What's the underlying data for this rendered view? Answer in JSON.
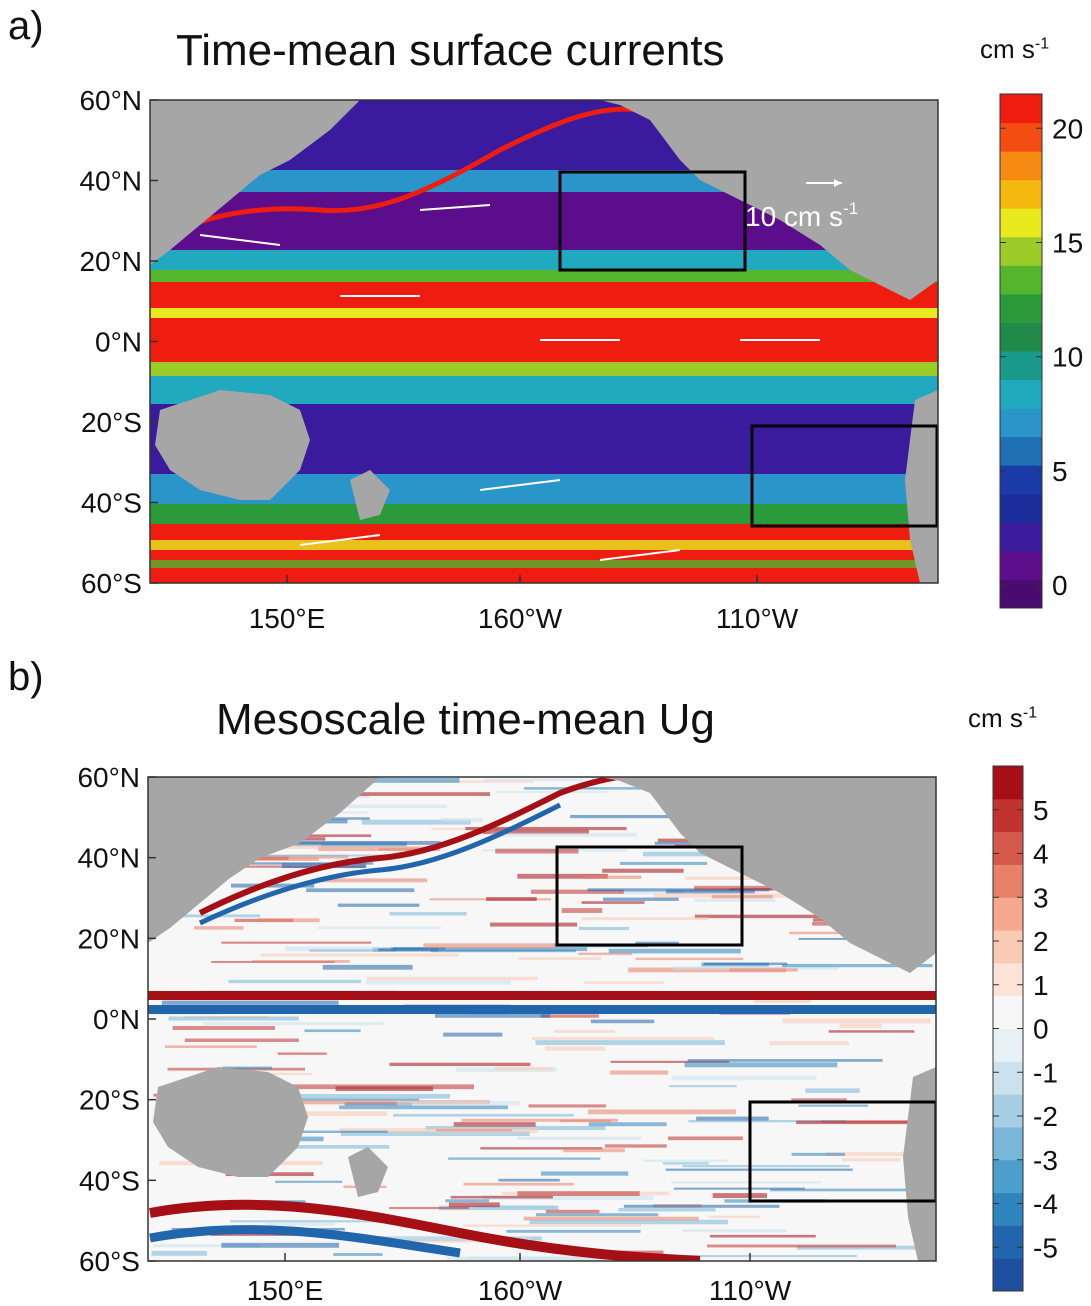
{
  "chart_data": [
    {
      "type": "heatmap",
      "panel_label": "a)",
      "title": "Time-mean surface currents",
      "colorbar_unit": "cm s",
      "colorbar_unit_exp": "-1",
      "colorbar_ticks": [
        "0",
        "5",
        "10",
        "15",
        "20"
      ],
      "colorbar_tick_values": [
        0,
        5,
        10,
        15,
        20
      ],
      "colorbar_range": [
        -1,
        21.5
      ],
      "colors": [
        "#4a0a6e",
        "#5c0d8c",
        "#3a1b9e",
        "#1c2b9a",
        "#1a3ba8",
        "#1f6fb4",
        "#2a95c8",
        "#21a9c0",
        "#1a9a8a",
        "#1f8a4a",
        "#2a9a3a",
        "#55b52d",
        "#9ccc2a",
        "#e8ea1e",
        "#f5b80f",
        "#f78a12",
        "#f34d11",
        "#ee1d10"
      ],
      "quiver_scale_label": "10 cm s",
      "quiver_scale_exp": "-1",
      "ytick_labels": [
        "60°N",
        "40°N",
        "20°N",
        "0°N",
        "20°S",
        "40°S",
        "60°S"
      ],
      "xtick_labels": [
        "150°E",
        "160°W",
        "110°W"
      ],
      "boxes": [
        "North Pacific subtropical box",
        "South Pacific subtropical box"
      ]
    },
    {
      "type": "heatmap",
      "panel_label": "b)",
      "title": "Mesoscale time-mean Ug",
      "colorbar_unit": "cm s",
      "colorbar_unit_exp": "-1",
      "colorbar_ticks": [
        "5",
        "4",
        "3",
        "2",
        "1",
        "0",
        "-1",
        "-2",
        "-3",
        "-4",
        "-5"
      ],
      "colorbar_tick_values": [
        5,
        4,
        3,
        2,
        1,
        0,
        -1,
        -2,
        -3,
        -4,
        -5
      ],
      "colorbar_range": [
        -6,
        6
      ],
      "colors": [
        "#1f4fa0",
        "#2166ac",
        "#2f85bd",
        "#4c9fcb",
        "#78b7d8",
        "#a6cfe4",
        "#cbe2ee",
        "#e6f0f5",
        "#f7f7f7",
        "#fbe3d8",
        "#f9cbb4",
        "#f4a98c",
        "#e8816a",
        "#d65a4c",
        "#c0332f",
        "#a50f15"
      ],
      "ytick_labels": [
        "60°N",
        "40°N",
        "20°N",
        "0°N",
        "20°S",
        "40°S",
        "60°S"
      ],
      "xtick_labels": [
        "150°E",
        "160°W",
        "110°W"
      ]
    }
  ]
}
